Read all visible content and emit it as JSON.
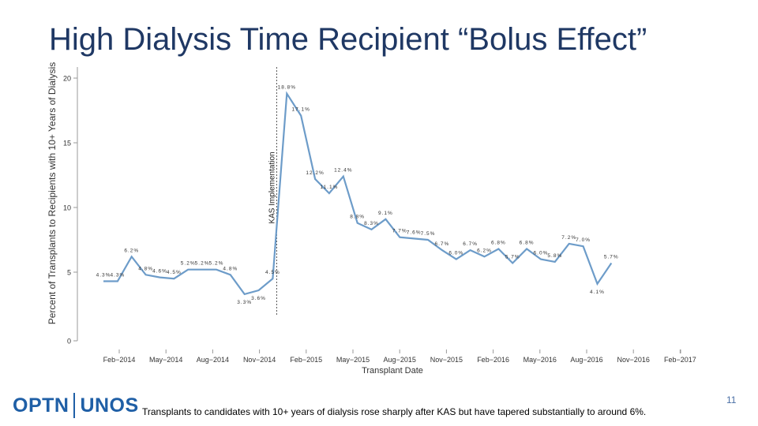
{
  "title": "High Dialysis Time Recipient “Bolus Effect”",
  "footer_note": "Transplants to candidates with 10+ years of dialysis rose sharply after KAS but have tapered substantially to around 6%.",
  "page_number": "11",
  "logo": {
    "left": "OPTN",
    "right": "UNOS"
  },
  "colors": {
    "line": "#6d9cc9",
    "title": "#1f3864",
    "text": "#333333"
  },
  "chart_data": {
    "type": "line",
    "xlabel": "Transplant Date",
    "ylabel": "Percent of Transplants to Recipients with 10+ Years of Dialysis",
    "ylim": [
      0,
      20
    ],
    "y_ticks": [
      0,
      5,
      10,
      15,
      20
    ],
    "x_tick_labels": [
      "Feb−2014",
      "May−2014",
      "Aug−2014",
      "Nov−2014",
      "Feb−2015",
      "May−2015",
      "Aug−2015",
      "Nov−2015",
      "Feb−2016",
      "May−2016",
      "Aug−2016",
      "Nov−2016",
      "Feb−2017"
    ],
    "annotation": {
      "label": "KAS Implementation",
      "x_index": 12
    },
    "series": [
      {
        "values": [
          4.3,
          4.3,
          6.2,
          4.8,
          4.6,
          4.5,
          5.2,
          5.2,
          5.2,
          4.8,
          3.3,
          3.6,
          4.5,
          18.8,
          17.1,
          12.2,
          11.1,
          12.4,
          8.8,
          8.3,
          9.1,
          7.7,
          7.6,
          7.5,
          6.7,
          6.0,
          6.7,
          6.2,
          6.8,
          5.7,
          6.8,
          6.0,
          5.8,
          7.2,
          7.0,
          4.1,
          5.7
        ],
        "labels": [
          "4.3%",
          "4.3%",
          "6.2%",
          "4.8%",
          "4.6%",
          "4.5%",
          "5.2%",
          "5.2%",
          "5.2%",
          "4.8%",
          "3.3%",
          "3.6%",
          "4.5%",
          "18.8%",
          "17.1%",
          "12.2%",
          "11.1%",
          "12.4%",
          "8.8%",
          "8.3%",
          "9.1%",
          "7.7%",
          "7.6%",
          "7.5%",
          "6.7%",
          "6.0%",
          "6.7%",
          "6.2%",
          "6.8%",
          "5.7%",
          "6.8%",
          "6.0%",
          "5.8%",
          "7.2%",
          "7.0%",
          "4.1%",
          "5.7%"
        ]
      }
    ]
  }
}
